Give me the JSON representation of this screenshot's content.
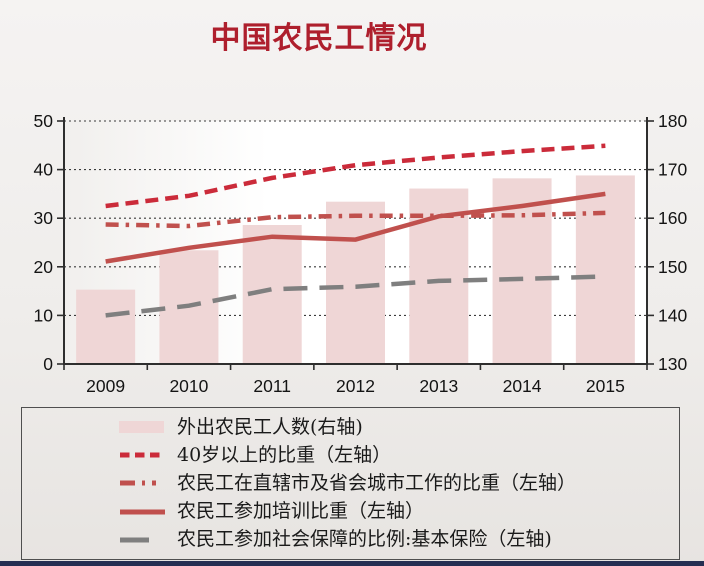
{
  "page": {
    "title": "中国农民工情况"
  },
  "colors": {
    "title": "#ae1f2d",
    "axis_text": "#141414",
    "axis_line": "#2e2e2e",
    "grid": "#3a3a3a",
    "plot_bg_left": "#f1efed",
    "plot_bg_right": "#ffffff",
    "bar_pink": "#efd6d6",
    "crimson_dashed": "#cb2b3a",
    "brick_red": "#c0504d",
    "gray_line": "#7f7f7f",
    "legend_border": "#4f4f4f",
    "footer_strip": "#252e52"
  },
  "legend": {
    "items": [
      {
        "label": "外出农民工人数(右轴)",
        "swatch": "bar"
      },
      {
        "label": "40岁以上的比重（左轴）",
        "swatch": "dashed"
      },
      {
        "label": "农民工在直辖市及省会城市工作的比重（左轴）",
        "swatch": "dashdot"
      },
      {
        "label": "农民工参加培训比重（左轴）",
        "swatch": "solid"
      },
      {
        "label": "农民工参加社会保障的比例:基本保险（左轴)",
        "swatch": "longdash"
      }
    ]
  },
  "chart_data": {
    "type": "combo-bar-line",
    "title": "中国农民工情况",
    "categories": [
      "2009",
      "2010",
      "2011",
      "2012",
      "2013",
      "2014",
      "2015"
    ],
    "left_axis": {
      "min": 0,
      "max": 50,
      "ticks": [
        0,
        10,
        20,
        30,
        40,
        50
      ]
    },
    "right_axis": {
      "min": 130,
      "max": 180,
      "ticks": [
        130,
        140,
        150,
        160,
        170,
        180
      ]
    },
    "grid": "dotted-horizontal",
    "legend_position": "bottom-boxed",
    "series": [
      {
        "name": "外出农民工人数(右轴)",
        "type": "bar",
        "axis": "right",
        "color": "#efd6d6",
        "values": [
          145.3,
          153.4,
          158.6,
          163.4,
          166.1,
          168.2,
          168.8
        ]
      },
      {
        "name": "40岁以上的比重（左轴）",
        "type": "line",
        "style": "dashed",
        "axis": "left",
        "color": "#cb2b3a",
        "values": [
          32.5,
          34.6,
          38.3,
          40.9,
          42.5,
          43.8,
          44.9
        ]
      },
      {
        "name": "农民工在直辖市及省会城市工作的比重（左轴）",
        "type": "line",
        "style": "dashdot",
        "axis": "left",
        "color": "#c0504d",
        "values": [
          28.7,
          28.4,
          30.2,
          30.5,
          30.5,
          30.6,
          31.1
        ]
      },
      {
        "name": "农民工参加培训比重（左轴）",
        "type": "line",
        "style": "solid",
        "axis": "left",
        "color": "#c0504d",
        "values": [
          21.1,
          23.9,
          26.2,
          25.6,
          30.4,
          32.5,
          35.0
        ]
      },
      {
        "name": "农民工参加社会保障的比例:基本保险（左轴)",
        "type": "line",
        "style": "longdash",
        "axis": "left",
        "color": "#7f7f7f",
        "values": [
          10.0,
          12.0,
          15.4,
          15.9,
          17.1,
          17.5,
          18.0
        ]
      }
    ]
  }
}
